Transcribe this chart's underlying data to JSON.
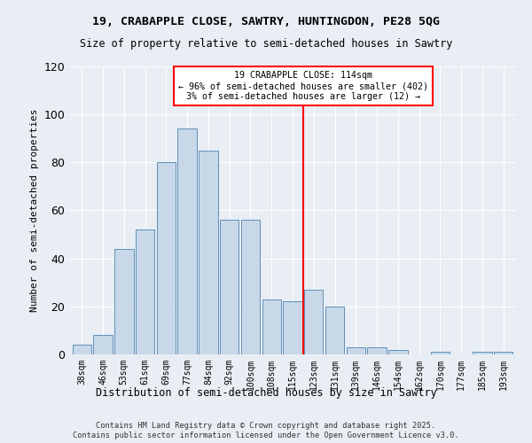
{
  "title1": "19, CRABAPPLE CLOSE, SAWTRY, HUNTINGDON, PE28 5QG",
  "title2": "Size of property relative to semi-detached houses in Sawtry",
  "xlabel": "Distribution of semi-detached houses by size in Sawtry",
  "ylabel": "Number of semi-detached properties",
  "footer1": "Contains HM Land Registry data © Crown copyright and database right 2025.",
  "footer2": "Contains public sector information licensed under the Open Government Licence v3.0.",
  "annotation_line1": "19 CRABAPPLE CLOSE: 114sqm",
  "annotation_line2": "← 96% of semi-detached houses are smaller (402)",
  "annotation_line3": "3% of semi-detached houses are larger (12) →",
  "bin_labels": [
    "38sqm",
    "46sqm",
    "53sqm",
    "61sqm",
    "69sqm",
    "77sqm",
    "84sqm",
    "92sqm",
    "100sqm",
    "108sqm",
    "115sqm",
    "123sqm",
    "131sqm",
    "139sqm",
    "146sqm",
    "154sqm",
    "162sqm",
    "170sqm",
    "177sqm",
    "185sqm",
    "193sqm"
  ],
  "bar_values": [
    4,
    8,
    44,
    52,
    80,
    94,
    85,
    56,
    56,
    23,
    22,
    27,
    20,
    3,
    3,
    2,
    0,
    1,
    0,
    1,
    1
  ],
  "bar_color": "#c8d8e8",
  "bar_edge_color": "#6090b8",
  "vline_x": 10.5,
  "vline_color": "red",
  "ylim": [
    0,
    120
  ],
  "yticks": [
    0,
    20,
    40,
    60,
    80,
    100,
    120
  ],
  "bg_color": "#e8eef4",
  "plot_bg_color": "#e8eef4",
  "annotation_box_color": "white",
  "annotation_box_edge": "red"
}
